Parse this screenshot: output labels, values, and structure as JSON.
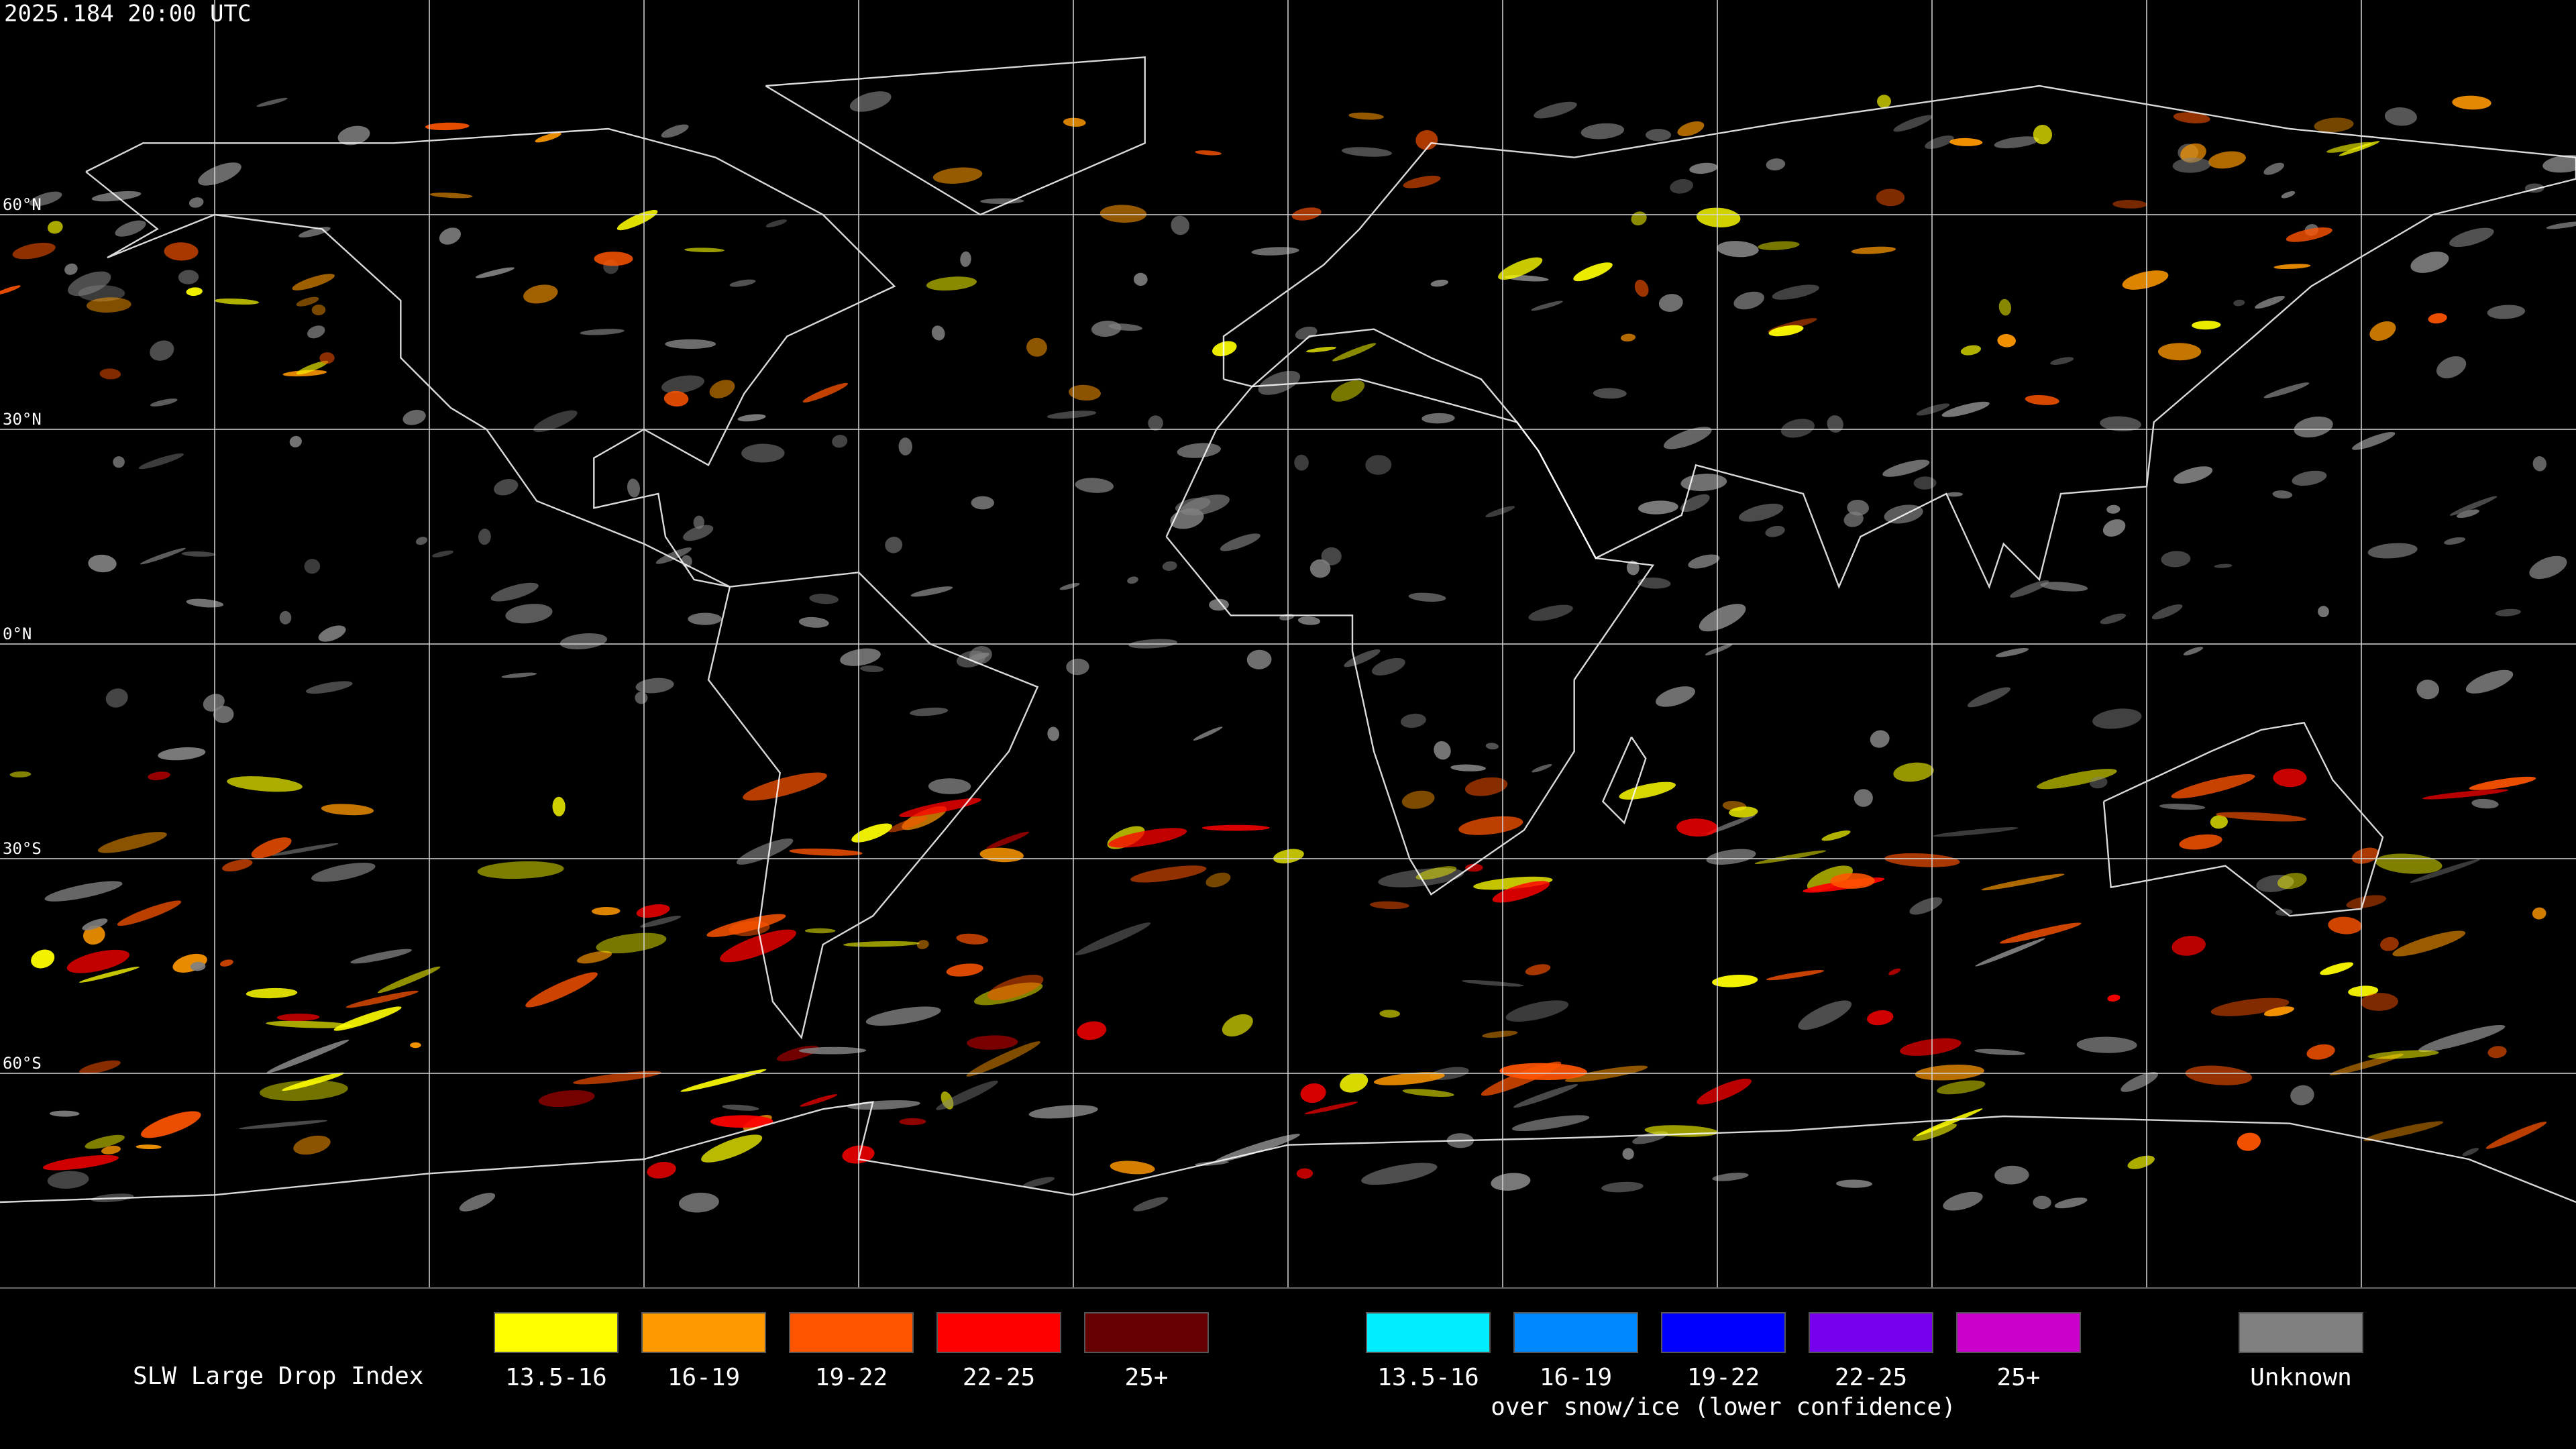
{
  "header": {
    "timestamp": "2025.184 20:00 UTC"
  },
  "map": {
    "latitude_labels": [
      "60°N",
      "30°N",
      "0°N",
      "30°S",
      "60°S"
    ]
  },
  "legend": {
    "title": "SLW Large Drop Index",
    "groups": [
      {
        "items": [
          {
            "label": "13.5-16",
            "color": "#ffff00"
          },
          {
            "label": "16-19",
            "color": "#ff9900"
          },
          {
            "label": "19-22",
            "color": "#ff5500"
          },
          {
            "label": "22-25",
            "color": "#ff0000"
          },
          {
            "label": "25+",
            "color": "#660000"
          }
        ]
      },
      {
        "items": [
          {
            "label": "13.5-16",
            "color": "#00eeff"
          },
          {
            "label": "16-19",
            "color": "#0088ff"
          },
          {
            "label": "19-22",
            "color": "#0000ff"
          },
          {
            "label": "22-25",
            "color": "#7700ee"
          },
          {
            "label": "25+",
            "color": "#cc00cc"
          }
        ],
        "caption": "over snow/ice (lower confidence)"
      },
      {
        "items": [
          {
            "label": "Unknown",
            "color": "#808080"
          }
        ]
      }
    ]
  }
}
